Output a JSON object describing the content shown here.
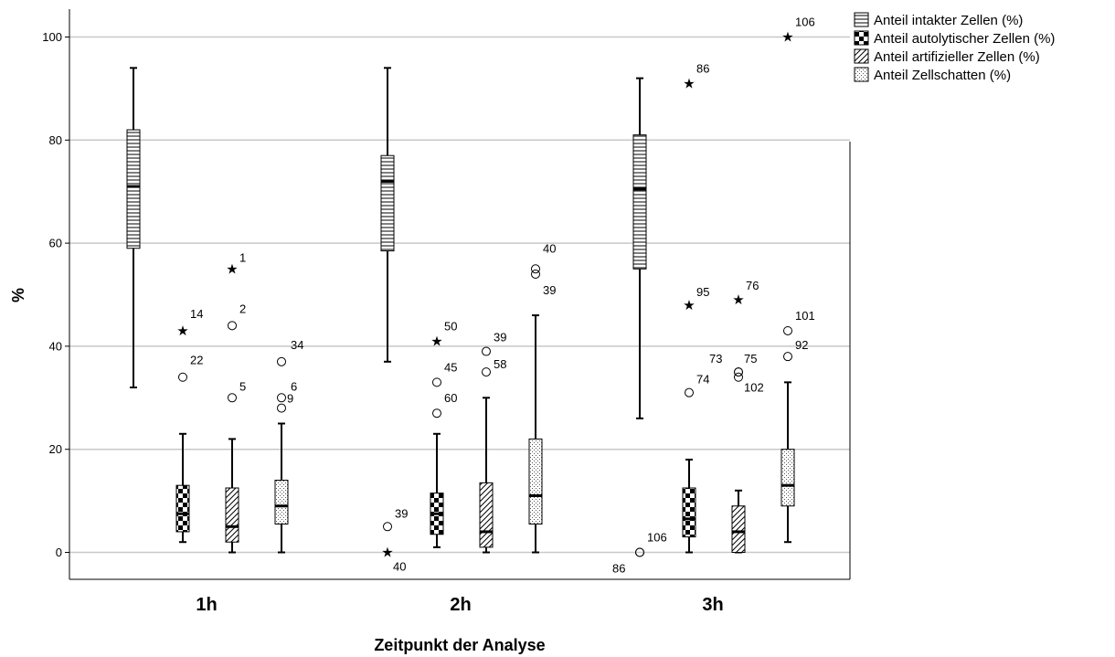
{
  "chart_data": {
    "type": "box",
    "xlabel": "Zeitpunkt der Analyse",
    "ylabel": "%",
    "ylim": [
      -5,
      105
    ],
    "yticks": [
      "0",
      "20",
      "40",
      "60",
      "80",
      "100"
    ],
    "grid": "horizontal",
    "legend_position": "top-right",
    "categories": [
      "1h",
      "2h",
      "3h"
    ],
    "series": [
      {
        "name": "Anteil intakter Zellen (%)",
        "pattern": "horizontal-lines",
        "boxes": [
          {
            "min": 32,
            "q1": 59,
            "median": 71,
            "q3": 82,
            "max": 94,
            "outliers": []
          },
          {
            "min": 37,
            "q1": 58.5,
            "median": 72,
            "q3": 77,
            "max": 94,
            "outliers": [
              {
                "value": 5,
                "label": "39",
                "marker": "circle"
              },
              {
                "value": 0,
                "label": "40",
                "marker": "star"
              }
            ]
          },
          {
            "min": 26,
            "q1": 55,
            "median": 70.5,
            "q3": 81,
            "max": 92,
            "outliers": [
              {
                "value": 0,
                "label": "106",
                "marker": "circle"
              },
              {
                "value": 0,
                "label": "86",
                "marker": "circle"
              }
            ]
          }
        ]
      },
      {
        "name": "Anteil autolytischer Zellen (%)",
        "pattern": "checkerboard",
        "boxes": [
          {
            "min": 2,
            "q1": 4,
            "median": 7.5,
            "q3": 13,
            "max": 23,
            "outliers": [
              {
                "value": 43,
                "label": "14",
                "marker": "star"
              },
              {
                "value": 34,
                "label": "22",
                "marker": "circle"
              }
            ]
          },
          {
            "min": 1,
            "q1": 3.5,
            "median": 7.5,
            "q3": 11.5,
            "max": 23,
            "outliers": [
              {
                "value": 41,
                "label": "50",
                "marker": "star"
              },
              {
                "value": 33,
                "label": "45",
                "marker": "circle"
              },
              {
                "value": 27,
                "label": "60",
                "marker": "circle"
              }
            ]
          },
          {
            "min": 0,
            "q1": 3,
            "median": 6.5,
            "q3": 12.5,
            "max": 18,
            "outliers": [
              {
                "value": 91,
                "label": "86",
                "marker": "star"
              },
              {
                "value": 48,
                "label": "95",
                "marker": "star"
              },
              {
                "value": 31,
                "label": "74",
                "marker": "circle"
              }
            ]
          }
        ]
      },
      {
        "name": "Anteil artifizieller Zellen (%)",
        "pattern": "diagonal-lines",
        "boxes": [
          {
            "min": 0,
            "q1": 2,
            "median": 5,
            "q3": 12.5,
            "max": 22,
            "outliers": [
              {
                "value": 55,
                "label": "1",
                "marker": "star"
              },
              {
                "value": 44,
                "label": "2",
                "marker": "circle"
              },
              {
                "value": 30,
                "label": "5",
                "marker": "circle"
              }
            ]
          },
          {
            "min": 0,
            "q1": 1,
            "median": 4,
            "q3": 13.5,
            "max": 30,
            "outliers": [
              {
                "value": 39,
                "label": "39",
                "marker": "circle"
              },
              {
                "value": 35,
                "label": "58",
                "marker": "circle"
              }
            ]
          },
          {
            "min": 0,
            "q1": 0,
            "median": 4,
            "q3": 9,
            "max": 12,
            "outliers": [
              {
                "value": 49,
                "label": "76",
                "marker": "star"
              },
              {
                "value": 35,
                "label": "73",
                "marker": "circle"
              },
              {
                "value": 35,
                "label": "75",
                "marker": "circle"
              },
              {
                "value": 34,
                "label": "102",
                "marker": "circle"
              }
            ]
          }
        ]
      },
      {
        "name": "Anteil Zellschatten (%)",
        "pattern": "dots",
        "boxes": [
          {
            "min": 0,
            "q1": 5.5,
            "median": 9,
            "q3": 14,
            "max": 25,
            "outliers": [
              {
                "value": 37,
                "label": "34",
                "marker": "circle"
              },
              {
                "value": 30,
                "label": "6",
                "marker": "circle"
              },
              {
                "value": 28,
                "label": "9",
                "marker": "circle"
              }
            ]
          },
          {
            "min": 0,
            "q1": 5.5,
            "median": 11,
            "q3": 22,
            "max": 46,
            "outliers": [
              {
                "value": 55,
                "label": "40",
                "marker": "circle"
              },
              {
                "value": 54,
                "label": "39",
                "marker": "circle"
              }
            ]
          },
          {
            "min": 2,
            "q1": 9,
            "median": 13,
            "q3": 20,
            "max": 33,
            "outliers": [
              {
                "value": 100,
                "label": "106",
                "marker": "star"
              },
              {
                "value": 43,
                "label": "101",
                "marker": "circle"
              },
              {
                "value": 38,
                "label": "92",
                "marker": "circle"
              }
            ]
          }
        ]
      }
    ]
  }
}
